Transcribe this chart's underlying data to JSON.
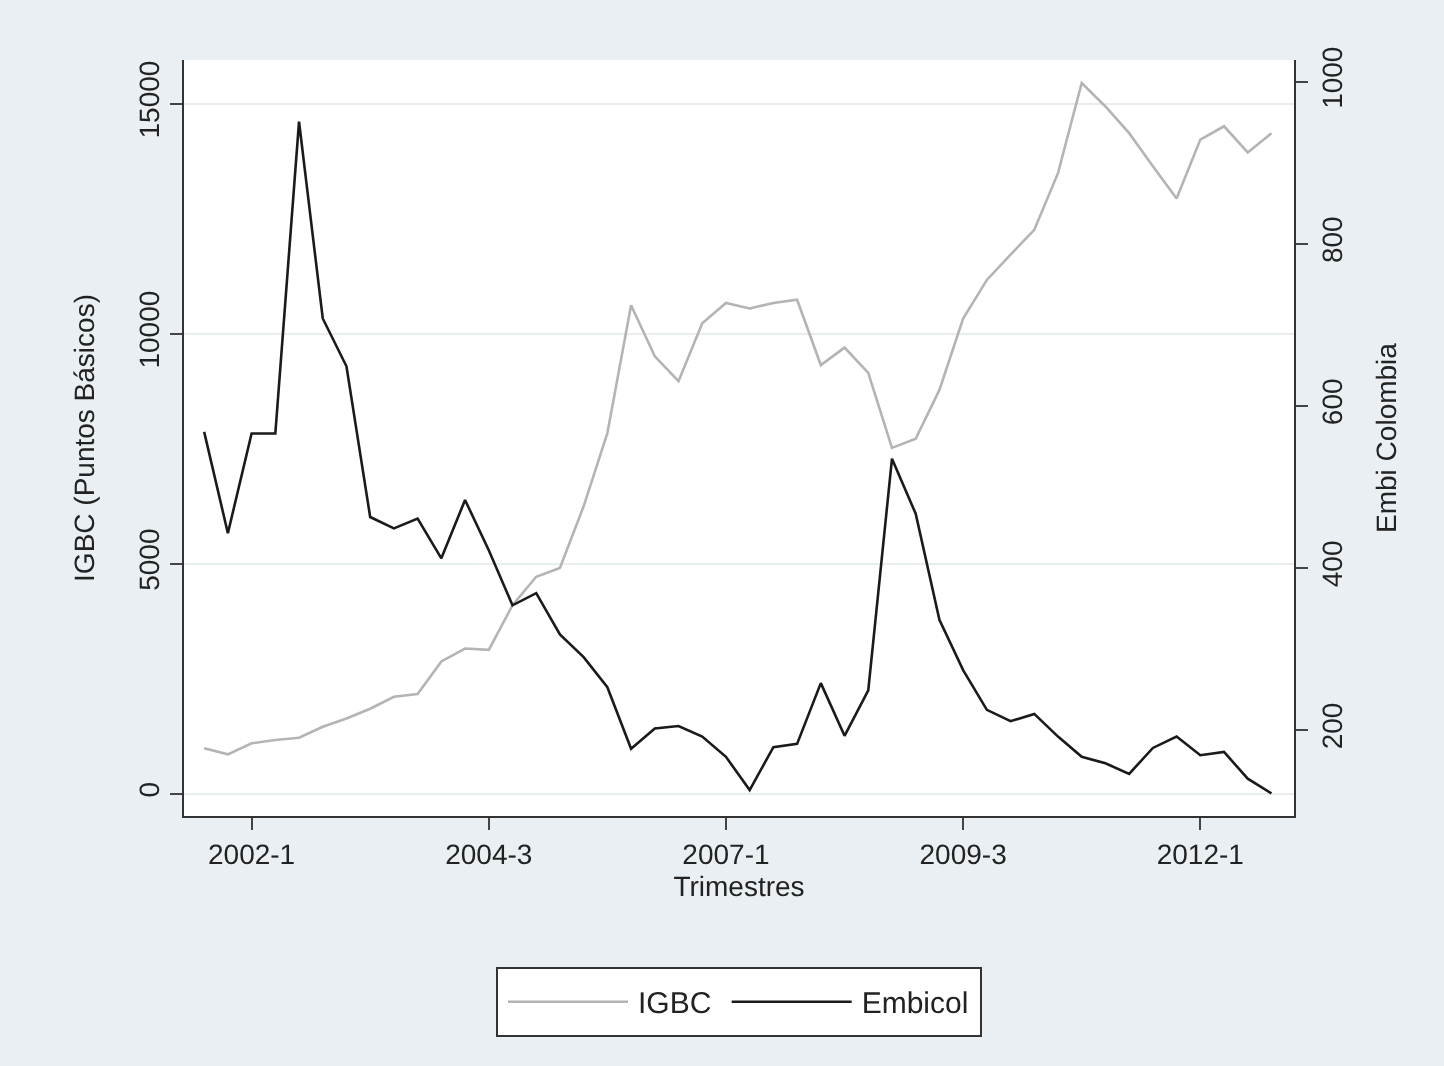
{
  "chart_data": {
    "type": "line",
    "xlabel": "Trimestres",
    "ylabel": "IGBC (Puntos Básicos)",
    "y2label": "Embi Colombia",
    "categories": [
      null,
      null,
      "2002-1",
      null,
      null,
      null,
      null,
      null,
      null,
      null,
      null,
      null,
      "2004-3",
      null,
      null,
      null,
      null,
      null,
      null,
      null,
      null,
      null,
      "2007-1",
      null,
      null,
      null,
      null,
      null,
      null,
      null,
      null,
      null,
      "2009-3",
      null,
      null,
      null,
      null,
      null,
      null,
      null,
      null,
      null,
      "2012-1",
      null,
      null,
      null
    ],
    "series": [
      {
        "name": "IGBC",
        "color": "#b4b4b4",
        "values": [
          990,
          860,
          1100,
          1170,
          1220,
          1460,
          1640,
          1850,
          2110,
          2170,
          2880,
          3160,
          3130,
          4100,
          4720,
          4910,
          6250,
          7840,
          10620,
          9510,
          8970,
          10230,
          10670,
          10550,
          10670,
          10740,
          9320,
          9700,
          9150,
          7520,
          7720,
          8780,
          10330,
          11170,
          11720,
          12260,
          13490,
          15450,
          14940,
          14360,
          13640,
          12940,
          14220,
          14510,
          13940,
          14360
        ]
      },
      {
        "name": "Embicol",
        "color": "#1a1a1a",
        "axis": "y2",
        "values": [
          568,
          443,
          566,
          566,
          951,
          708,
          649,
          463,
          449,
          461,
          412,
          484,
          422,
          354,
          369,
          318,
          290,
          253,
          177,
          202,
          205,
          192,
          167,
          126,
          179,
          183,
          258,
          193,
          249,
          535,
          467,
          336,
          274,
          225,
          211,
          220,
          192,
          167,
          159,
          146,
          178,
          192,
          169,
          173,
          140,
          122
        ]
      }
    ],
    "ylim": [
      -480,
      15950
    ],
    "yticks": [
      0,
      5000,
      10000,
      15000
    ],
    "y2lim": [
      94,
      1027
    ],
    "y2ticks": [
      200,
      400,
      600,
      800,
      1000
    ],
    "grid": "y",
    "legend": "bottom",
    "marker": "none",
    "line_style": "solid"
  }
}
